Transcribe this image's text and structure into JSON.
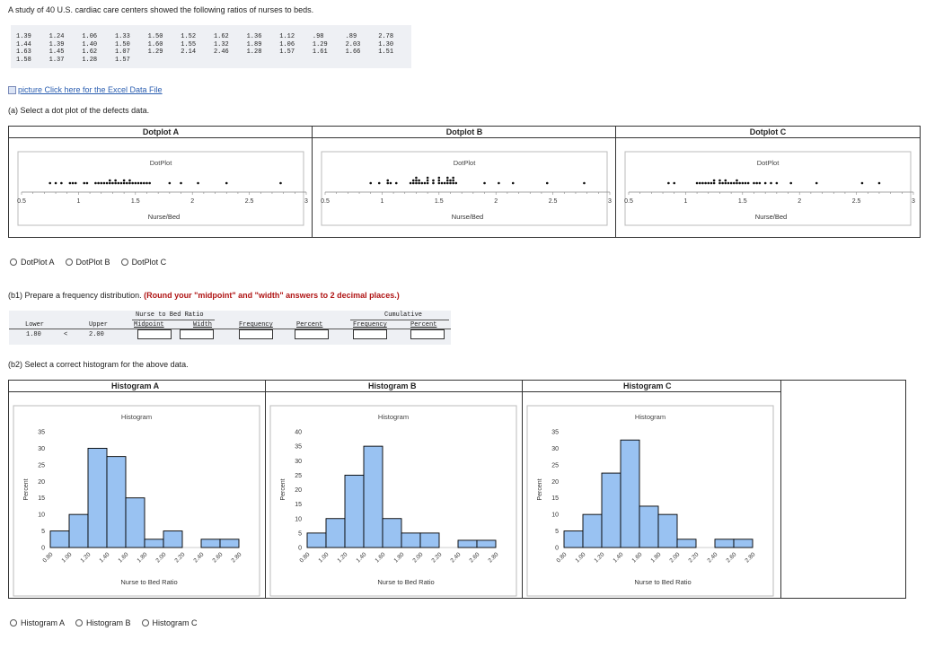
{
  "intro": "A study of 40 U.S. cardiac care centers showed the following ratios of nurses to beds.",
  "data_rows": [
    [
      "1.39",
      "1.24",
      "1.06",
      "1.33",
      "1.50",
      "1.52",
      "1.62",
      "1.36",
      "1.12",
      ".98",
      ".89",
      "2.78"
    ],
    [
      "1.44",
      "1.39",
      "1.40",
      "1.50",
      "1.60",
      "1.55",
      "1.32",
      "1.89",
      "1.06",
      "1.29",
      "2.03",
      "1.30"
    ],
    [
      "1.63",
      "1.45",
      "1.62",
      "1.07",
      "1.29",
      "2.14",
      "2.46",
      "1.28",
      "1.57",
      "1.61",
      "1.66",
      "1.51"
    ],
    [
      "1.58",
      "1.37",
      "1.28",
      "1.57",
      "",
      "",
      "",
      "",
      "",
      "",
      "",
      ""
    ]
  ],
  "excel_link": "picture  Click here for the Excel Data File",
  "q_a": "(a) Select a dot plot of the defects data.",
  "dotplots": {
    "headers": [
      "Dotplot A",
      "Dotplot B",
      "Dotplot C"
    ],
    "plot_title": "DotPlot",
    "xlabel": "Nurse/Bed",
    "ticks": [
      "0.5",
      "1",
      "1.5",
      "2",
      "2.5",
      "3"
    ],
    "options": [
      "DotPlot A",
      "DotPlot B",
      "DotPlot C"
    ]
  },
  "q_b1_prefix": "(b1) Prepare a frequency distribution. ",
  "q_b1_note": "(Round your \"midpoint\" and \"width\" answers to 2 decimal places.)",
  "freq": {
    "group_header": "Nurse to Bed Ratio",
    "cum_header": "Cumulative",
    "col_lower": "Lower",
    "col_upper": "Upper",
    "col_midpoint": "Midpoint",
    "col_width": "Width",
    "col_frequency": "Frequency",
    "col_percent": "Percent",
    "col_cum_frequency": "Frequency",
    "col_cum_percent": "Percent",
    "lower_value": "1.80",
    "lt": "<",
    "upper_value": "2.00"
  },
  "q_b2": "(b2) Select a correct histogram for the above data.",
  "histograms": {
    "headers": [
      "Histogram A",
      "Histogram B",
      "Histogram C"
    ],
    "plot_title": "Histogram",
    "ylabel": "Percent",
    "xlabel": "Nurse to Bed Ratio",
    "xticks": [
      "0.80",
      "1.00",
      "1.20",
      "1.40",
      "1.60",
      "1.80",
      "2.00",
      "2.20",
      "2.40",
      "2.60",
      "2.80"
    ],
    "options": [
      "Histogram A",
      "Histogram B",
      "Histogram C"
    ],
    "bar_color": "#99c2f2"
  },
  "chart_data": [
    {
      "type": "bar",
      "title": "Histogram",
      "xlabel": "Nurse to Bed Ratio",
      "ylabel": "Percent",
      "ylim": [
        0,
        35
      ],
      "yticks": [
        0,
        5,
        10,
        15,
        20,
        25,
        30,
        35
      ],
      "bins": [
        "0.80-1.00",
        "1.00-1.20",
        "1.20-1.40",
        "1.40-1.60",
        "1.60-1.80",
        "1.80-2.00",
        "2.00-2.20",
        "2.20-2.40",
        "2.40-2.60",
        "2.60-2.80"
      ],
      "values": [
        5,
        10,
        30,
        27.5,
        15,
        2.5,
        5,
        0,
        2.5,
        2.5
      ]
    },
    {
      "type": "bar",
      "title": "Histogram",
      "xlabel": "Nurse to Bed Ratio",
      "ylabel": "Percent",
      "ylim": [
        0,
        40
      ],
      "yticks": [
        0,
        5,
        10,
        15,
        20,
        25,
        30,
        35,
        40
      ],
      "bins": [
        "0.80-1.00",
        "1.00-1.20",
        "1.20-1.40",
        "1.40-1.60",
        "1.60-1.80",
        "1.80-2.00",
        "2.00-2.20",
        "2.20-2.40",
        "2.40-2.60",
        "2.60-2.80"
      ],
      "values": [
        5,
        10,
        25,
        35,
        10,
        5,
        5,
        0,
        2.5,
        2.5
      ]
    },
    {
      "type": "bar",
      "title": "Histogram",
      "xlabel": "Nurse to Bed Ratio",
      "ylabel": "Percent",
      "ylim": [
        0,
        35
      ],
      "yticks": [
        0,
        5,
        10,
        15,
        20,
        25,
        30,
        35
      ],
      "bins": [
        "0.80-1.00",
        "1.00-1.20",
        "1.20-1.40",
        "1.40-1.60",
        "1.60-1.80",
        "1.80-2.00",
        "2.00-2.20",
        "2.20-2.40",
        "2.40-2.60",
        "2.60-2.80"
      ],
      "values": [
        5,
        10,
        22.5,
        32.5,
        12.5,
        10,
        2.5,
        0,
        2.5,
        2.5
      ]
    },
    {
      "type": "scatter",
      "title": "DotPlot",
      "xlabel": "Nurse/Bed",
      "xlim": [
        0.5,
        3
      ],
      "x": [
        0.75,
        0.8,
        0.86,
        0.93,
        0.96,
        0.98,
        1.05,
        1.08,
        1.15,
        1.17,
        1.2,
        1.22,
        1.25,
        1.27,
        1.28,
        1.3,
        1.32,
        1.33,
        1.35,
        1.37,
        1.39,
        1.39,
        1.42,
        1.44,
        1.46,
        1.48,
        1.5,
        1.52,
        1.55,
        1.57,
        1.6,
        1.63,
        1.8,
        1.9,
        2.05,
        2.3,
        2.78
      ]
    },
    {
      "type": "scatter",
      "title": "DotPlot",
      "xlabel": "Nurse/Bed",
      "xlim": [
        0.5,
        3
      ],
      "x": [
        0.89,
        0.98,
        1.06,
        1.06,
        1.07,
        1.12,
        1.24,
        1.28,
        1.28,
        1.29,
        1.29,
        1.3,
        1.32,
        1.33,
        1.36,
        1.37,
        1.39,
        1.39,
        1.4,
        1.44,
        1.45,
        1.5,
        1.5,
        1.51,
        1.52,
        1.55,
        1.57,
        1.57,
        1.58,
        1.6,
        1.61,
        1.62,
        1.62,
        1.63,
        1.66,
        1.89,
        2.03,
        2.14,
        2.46,
        2.78
      ]
    },
    {
      "type": "scatter",
      "title": "DotPlot",
      "xlabel": "Nurse/Bed",
      "xlim": [
        0.5,
        3
      ],
      "x": [
        0.86,
        0.89,
        1.1,
        1.13,
        1.16,
        1.18,
        1.2,
        1.22,
        1.25,
        1.26,
        1.29,
        1.3,
        1.32,
        1.34,
        1.36,
        1.38,
        1.4,
        1.42,
        1.44,
        1.46,
        1.48,
        1.5,
        1.52,
        1.55,
        1.6,
        1.62,
        1.66,
        1.7,
        1.75,
        1.8,
        1.92,
        2.15,
        2.55,
        2.7
      ]
    }
  ]
}
